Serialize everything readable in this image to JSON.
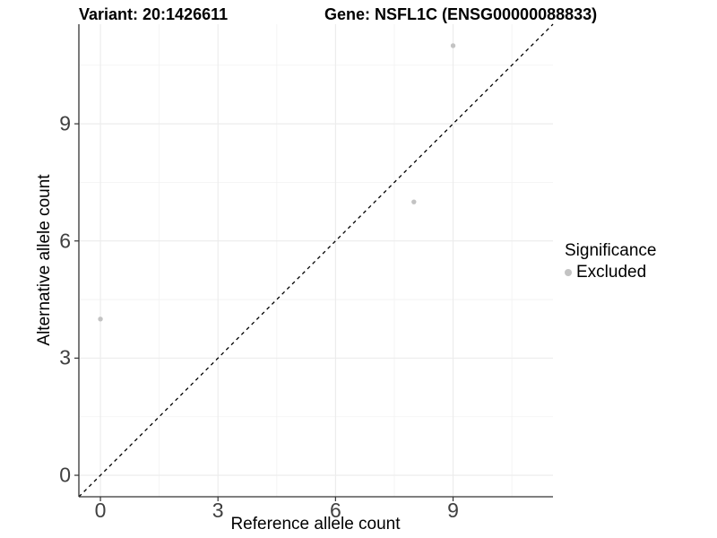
{
  "chart_data": {
    "type": "scatter",
    "title_left": "Variant: 20:1426611",
    "title_right": "Gene: NSFL1C (ENSG00000088833)",
    "xlabel": "Reference allele count",
    "ylabel": "Alternative allele count",
    "xlim": [
      -0.55,
      11.55
    ],
    "ylim": [
      -0.55,
      11.55
    ],
    "xticks": [
      0,
      3,
      6,
      9
    ],
    "yticks": [
      0,
      3,
      6,
      9
    ],
    "minor_xticks": [
      1.5,
      4.5,
      7.5,
      10.5
    ],
    "minor_yticks": [
      1.5,
      4.5,
      7.5,
      10.5
    ],
    "grid": {
      "major_color": "#ebebeb",
      "minor_color": "#f2f2f2",
      "on": true
    },
    "axis_color": "#333333",
    "tick_label_color": "#404040",
    "reference_line": {
      "type": "identity y=x",
      "style": "dashed",
      "color": "#000000"
    },
    "series": [
      {
        "name": "Excluded",
        "color": "#c3c3c3",
        "points": [
          {
            "x": 0,
            "y": 4
          },
          {
            "x": 8,
            "y": 7
          },
          {
            "x": 9,
            "y": 11
          }
        ]
      }
    ],
    "legend": {
      "title": "Significance",
      "position": "right",
      "entries": [
        {
          "label": "Excluded",
          "color": "#c3c3c3"
        }
      ]
    }
  }
}
